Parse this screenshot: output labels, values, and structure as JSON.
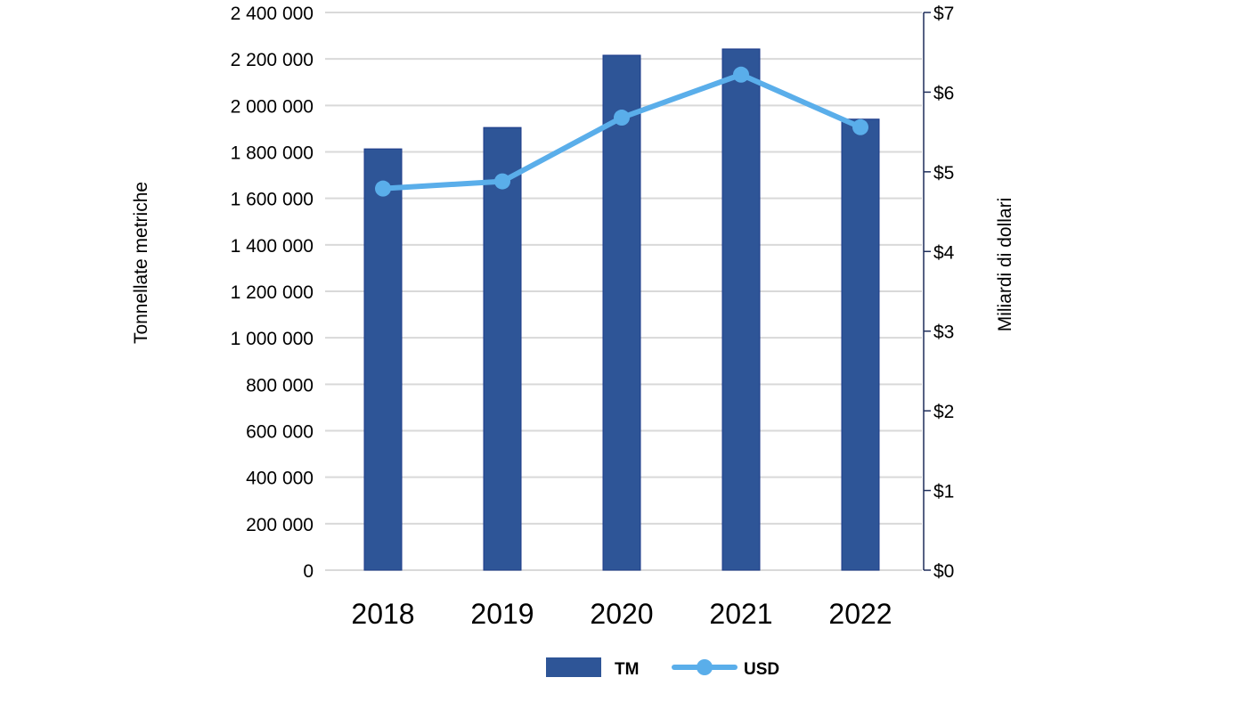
{
  "chart_data": {
    "type": "bar",
    "categories": [
      "2018",
      "2019",
      "2020",
      "2021",
      "2022"
    ],
    "series": [
      {
        "name": "TM",
        "type": "bar",
        "axis": "left",
        "color": "#2e5597",
        "values": [
          1813000,
          1905000,
          2216000,
          2243000,
          1941000
        ]
      },
      {
        "name": "USD",
        "type": "line",
        "axis": "right",
        "color": "#5aaeea",
        "values": [
          4.79,
          4.88,
          5.68,
          6.22,
          5.56
        ]
      }
    ],
    "ylabel": "Tonnellate metriche",
    "y2label": "Miliardi di dollari",
    "ylim": [
      0,
      2400000
    ],
    "y2lim": [
      0,
      7
    ],
    "yticks": [
      "0",
      "200 000",
      "400 000",
      "600 000",
      "800 000",
      "1 000 000",
      "1 200 000",
      "1 400 000",
      "1 600 000",
      "1 800 000",
      "2 000 000",
      "2 200 000",
      "2 400 000"
    ],
    "y2ticks": [
      "$0",
      "$1",
      "$2",
      "$3",
      "$4",
      "$5",
      "$6",
      "$7"
    ],
    "grid": true,
    "legend": "bottom"
  }
}
